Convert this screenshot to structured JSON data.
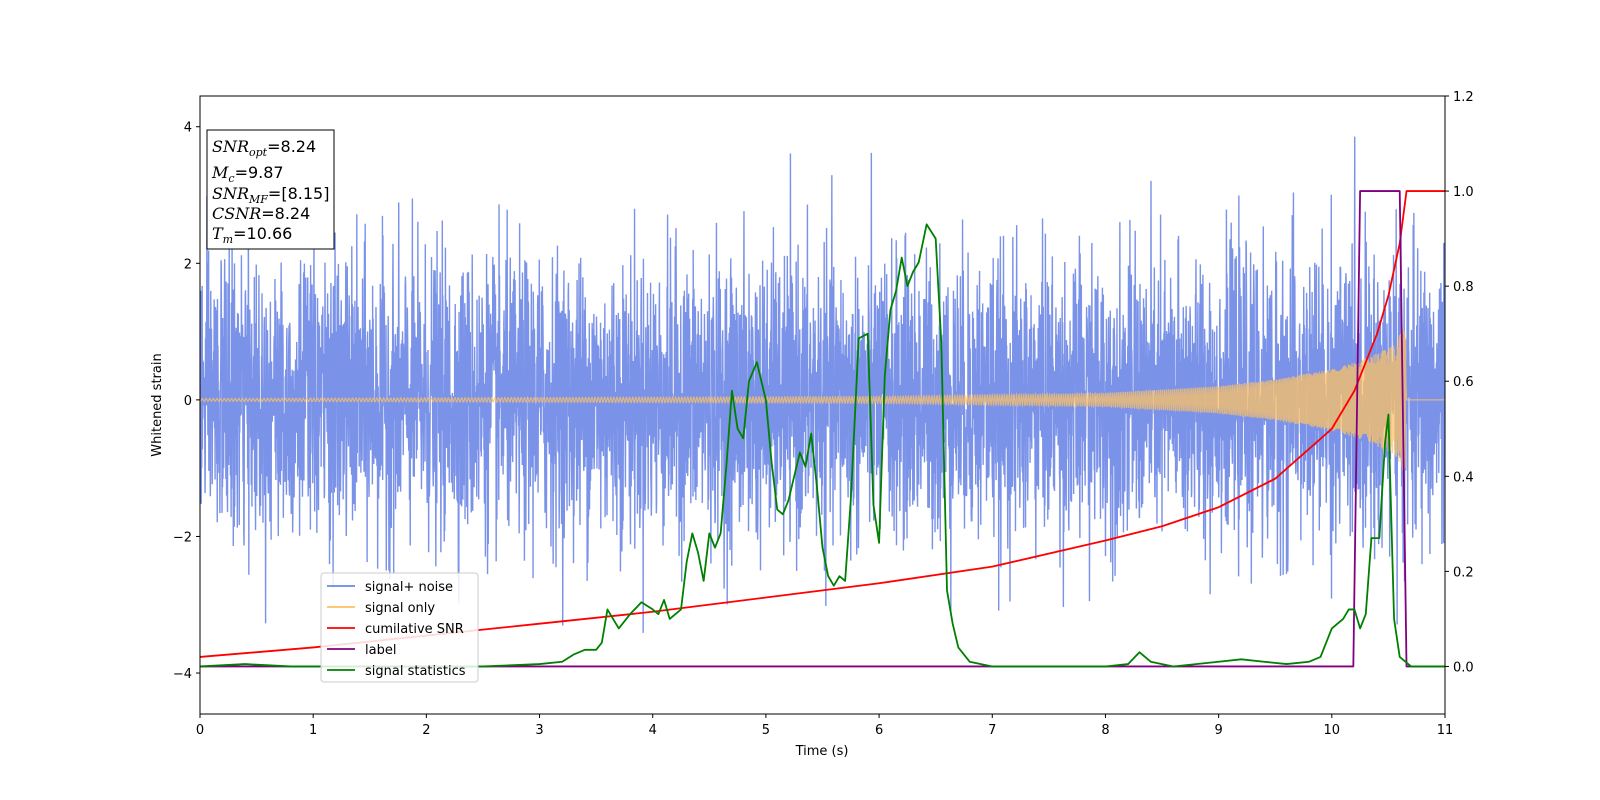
{
  "chart_data": {
    "type": "line",
    "xlabel": "Time (s)",
    "ylabel_left": "Whitened strain",
    "ylabel_right": "",
    "xlim": [
      0,
      11
    ],
    "ylim_left": [
      -4.6,
      4.45
    ],
    "ylim_right": [
      -0.1,
      1.2
    ],
    "x_ticks": [
      "0",
      "1",
      "2",
      "3",
      "4",
      "5",
      "6",
      "7",
      "8",
      "9",
      "10",
      "11"
    ],
    "y_ticks_left": [
      "−4",
      "−2",
      "0",
      "2",
      "4"
    ],
    "y_ticks_right": [
      "0.0",
      "0.2",
      "0.4",
      "0.6",
      "0.8",
      "1.0",
      "1.2"
    ],
    "grid": false,
    "annotation": {
      "lines": [
        {
          "base": "SNR",
          "sub": "opt",
          "value": "=8.24"
        },
        {
          "base": "M",
          "sub": "c",
          "value": "=9.87"
        },
        {
          "base": "SNR",
          "sub": "MF",
          "value": "=[8.15]"
        },
        {
          "base": "CSNR",
          "sub": "",
          "value": "=8.24"
        },
        {
          "base": "T",
          "sub": "m",
          "value": "=10.66"
        }
      ]
    },
    "legend": {
      "placement": "lower-left",
      "entries": [
        {
          "label": "signal+ noise",
          "color": "#6b86e6"
        },
        {
          "label": "signal only",
          "color": "#ffc166"
        },
        {
          "label": "cumilative SNR",
          "color": "#ff0000"
        },
        {
          "label": "label",
          "color": "#800080"
        },
        {
          "label": "signal statistics",
          "color": "#008000"
        }
      ]
    },
    "series": [
      {
        "name": "signal+ noise",
        "axis": "left",
        "color": "#6b86e6",
        "description": "white noise, std ~1.0, peaks ~±4",
        "noise_std": 1.0,
        "y_max": 4.05,
        "y_min": -4.15
      },
      {
        "name": "signal only",
        "axis": "left",
        "color": "#ffc166",
        "chirp_merger_time": 10.66,
        "amplitude_envelope": [
          {
            "x": 0,
            "y": 0.02
          },
          {
            "x": 6,
            "y": 0.05
          },
          {
            "x": 8,
            "y": 0.1
          },
          {
            "x": 9,
            "y": 0.2
          },
          {
            "x": 9.5,
            "y": 0.3
          },
          {
            "x": 10,
            "y": 0.45
          },
          {
            "x": 10.3,
            "y": 0.6
          },
          {
            "x": 10.55,
            "y": 0.8
          },
          {
            "x": 10.65,
            "y": 1.1
          },
          {
            "x": 10.66,
            "y": 0
          },
          {
            "x": 11,
            "y": 0
          }
        ]
      },
      {
        "name": "cumilative SNR",
        "axis": "right",
        "color": "#ff0000",
        "points": [
          {
            "x": 0,
            "y": 0.02
          },
          {
            "x": 1,
            "y": 0.04
          },
          {
            "x": 2,
            "y": 0.065
          },
          {
            "x": 3,
            "y": 0.09
          },
          {
            "x": 4,
            "y": 0.115
          },
          {
            "x": 5,
            "y": 0.145
          },
          {
            "x": 6,
            "y": 0.175
          },
          {
            "x": 7,
            "y": 0.21
          },
          {
            "x": 8,
            "y": 0.265
          },
          {
            "x": 8.5,
            "y": 0.295
          },
          {
            "x": 9,
            "y": 0.335
          },
          {
            "x": 9.5,
            "y": 0.395
          },
          {
            "x": 10,
            "y": 0.5
          },
          {
            "x": 10.2,
            "y": 0.58
          },
          {
            "x": 10.4,
            "y": 0.7
          },
          {
            "x": 10.5,
            "y": 0.78
          },
          {
            "x": 10.6,
            "y": 0.89
          },
          {
            "x": 10.66,
            "y": 1.0
          },
          {
            "x": 11,
            "y": 1.0
          }
        ]
      },
      {
        "name": "label",
        "axis": "right",
        "color": "#800080",
        "points": [
          {
            "x": 0,
            "y": 0
          },
          {
            "x": 10.19,
            "y": 0
          },
          {
            "x": 10.25,
            "y": 1.0
          },
          {
            "x": 10.6,
            "y": 1.0
          },
          {
            "x": 10.66,
            "y": 0
          },
          {
            "x": 11,
            "y": 0
          }
        ]
      },
      {
        "name": "signal statistics",
        "axis": "right",
        "color": "#008000",
        "points": [
          {
            "x": 0,
            "y": 0.0
          },
          {
            "x": 0.4,
            "y": 0.005
          },
          {
            "x": 0.8,
            "y": 0.0
          },
          {
            "x": 2,
            "y": 0.0
          },
          {
            "x": 2.5,
            "y": 0.0
          },
          {
            "x": 3,
            "y": 0.005
          },
          {
            "x": 3.2,
            "y": 0.01
          },
          {
            "x": 3.3,
            "y": 0.025
          },
          {
            "x": 3.4,
            "y": 0.035
          },
          {
            "x": 3.5,
            "y": 0.035
          },
          {
            "x": 3.55,
            "y": 0.05
          },
          {
            "x": 3.6,
            "y": 0.12
          },
          {
            "x": 3.65,
            "y": 0.1
          },
          {
            "x": 3.7,
            "y": 0.08
          },
          {
            "x": 3.75,
            "y": 0.095
          },
          {
            "x": 3.8,
            "y": 0.11
          },
          {
            "x": 3.9,
            "y": 0.135
          },
          {
            "x": 4.0,
            "y": 0.12
          },
          {
            "x": 4.05,
            "y": 0.11
          },
          {
            "x": 4.1,
            "y": 0.14
          },
          {
            "x": 4.15,
            "y": 0.1
          },
          {
            "x": 4.25,
            "y": 0.12
          },
          {
            "x": 4.3,
            "y": 0.22
          },
          {
            "x": 4.35,
            "y": 0.28
          },
          {
            "x": 4.4,
            "y": 0.24
          },
          {
            "x": 4.45,
            "y": 0.18
          },
          {
            "x": 4.5,
            "y": 0.28
          },
          {
            "x": 4.55,
            "y": 0.25
          },
          {
            "x": 4.6,
            "y": 0.28
          },
          {
            "x": 4.65,
            "y": 0.42
          },
          {
            "x": 4.7,
            "y": 0.58
          },
          {
            "x": 4.75,
            "y": 0.5
          },
          {
            "x": 4.8,
            "y": 0.48
          },
          {
            "x": 4.85,
            "y": 0.6
          },
          {
            "x": 4.92,
            "y": 0.64
          },
          {
            "x": 5.0,
            "y": 0.56
          },
          {
            "x": 5.05,
            "y": 0.43
          },
          {
            "x": 5.1,
            "y": 0.33
          },
          {
            "x": 5.15,
            "y": 0.32
          },
          {
            "x": 5.2,
            "y": 0.35
          },
          {
            "x": 5.3,
            "y": 0.45
          },
          {
            "x": 5.35,
            "y": 0.42
          },
          {
            "x": 5.4,
            "y": 0.49
          },
          {
            "x": 5.45,
            "y": 0.38
          },
          {
            "x": 5.5,
            "y": 0.25
          },
          {
            "x": 5.55,
            "y": 0.19
          },
          {
            "x": 5.6,
            "y": 0.17
          },
          {
            "x": 5.65,
            "y": 0.19
          },
          {
            "x": 5.7,
            "y": 0.18
          },
          {
            "x": 5.75,
            "y": 0.35
          },
          {
            "x": 5.82,
            "y": 0.69
          },
          {
            "x": 5.9,
            "y": 0.7
          },
          {
            "x": 5.95,
            "y": 0.34
          },
          {
            "x": 6.0,
            "y": 0.26
          },
          {
            "x": 6.05,
            "y": 0.61
          },
          {
            "x": 6.1,
            "y": 0.75
          },
          {
            "x": 6.15,
            "y": 0.79
          },
          {
            "x": 6.2,
            "y": 0.86
          },
          {
            "x": 6.25,
            "y": 0.8
          },
          {
            "x": 6.3,
            "y": 0.83
          },
          {
            "x": 6.35,
            "y": 0.85
          },
          {
            "x": 6.42,
            "y": 0.93
          },
          {
            "x": 6.5,
            "y": 0.9
          },
          {
            "x": 6.55,
            "y": 0.68
          },
          {
            "x": 6.6,
            "y": 0.16
          },
          {
            "x": 6.65,
            "y": 0.09
          },
          {
            "x": 6.7,
            "y": 0.04
          },
          {
            "x": 6.8,
            "y": 0.01
          },
          {
            "x": 7.0,
            "y": 0.0
          },
          {
            "x": 7.5,
            "y": 0.0
          },
          {
            "x": 8.0,
            "y": 0.0
          },
          {
            "x": 8.2,
            "y": 0.005
          },
          {
            "x": 8.3,
            "y": 0.03
          },
          {
            "x": 8.4,
            "y": 0.01
          },
          {
            "x": 8.6,
            "y": 0.0
          },
          {
            "x": 9.0,
            "y": 0.01
          },
          {
            "x": 9.2,
            "y": 0.015
          },
          {
            "x": 9.4,
            "y": 0.01
          },
          {
            "x": 9.6,
            "y": 0.005
          },
          {
            "x": 9.8,
            "y": 0.01
          },
          {
            "x": 9.9,
            "y": 0.02
          },
          {
            "x": 10.0,
            "y": 0.08
          },
          {
            "x": 10.1,
            "y": 0.1
          },
          {
            "x": 10.15,
            "y": 0.12
          },
          {
            "x": 10.2,
            "y": 0.12
          },
          {
            "x": 10.25,
            "y": 0.08
          },
          {
            "x": 10.3,
            "y": 0.11
          },
          {
            "x": 10.35,
            "y": 0.27
          },
          {
            "x": 10.42,
            "y": 0.27
          },
          {
            "x": 10.47,
            "y": 0.47
          },
          {
            "x": 10.5,
            "y": 0.53
          },
          {
            "x": 10.55,
            "y": 0.1
          },
          {
            "x": 10.6,
            "y": 0.02
          },
          {
            "x": 10.7,
            "y": 0.0
          },
          {
            "x": 11.0,
            "y": 0.0
          }
        ]
      }
    ]
  }
}
